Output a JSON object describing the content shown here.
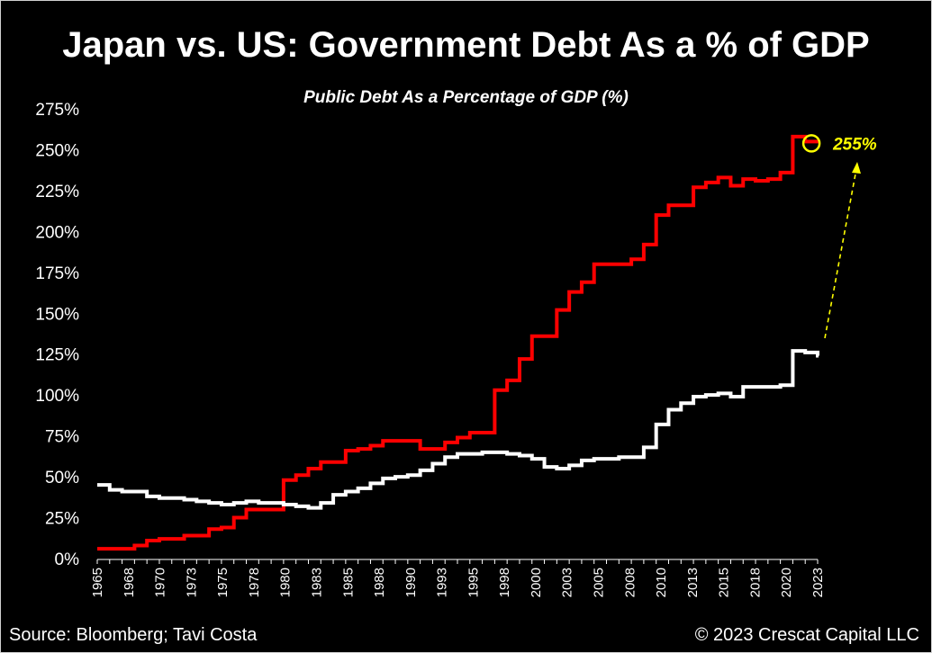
{
  "header": {
    "title": "Japan vs. US: Government Debt As a % of GDP"
  },
  "footer": {
    "source": "Source: Bloomberg; Tavi Costa",
    "copyright": "© 2023 Crescat Capital LLC"
  },
  "chart_data": {
    "type": "line",
    "title": "Public Debt As a Percentage of GDP (%)",
    "xlabel": "",
    "ylabel": "",
    "ylim": [
      0,
      275
    ],
    "yticks": [
      "0%",
      "25%",
      "50%",
      "75%",
      "100%",
      "125%",
      "150%",
      "175%",
      "200%",
      "225%",
      "250%",
      "275%"
    ],
    "xticks": [
      "1965",
      "1968",
      "1970",
      "1973",
      "1975",
      "1978",
      "1980",
      "1983",
      "1985",
      "1988",
      "1990",
      "1993",
      "1995",
      "1998",
      "2000",
      "2003",
      "2005",
      "2008",
      "2010",
      "2013",
      "2015",
      "2018",
      "2020",
      "2023"
    ],
    "grid": false,
    "legend": "none",
    "x": [
      1965,
      1966,
      1967,
      1968,
      1969,
      1970,
      1971,
      1972,
      1973,
      1974,
      1975,
      1976,
      1977,
      1978,
      1979,
      1980,
      1981,
      1982,
      1983,
      1984,
      1985,
      1986,
      1987,
      1988,
      1989,
      1990,
      1991,
      1992,
      1993,
      1994,
      1995,
      1996,
      1997,
      1998,
      1999,
      2000,
      2001,
      2002,
      2003,
      2004,
      2005,
      2006,
      2007,
      2008,
      2009,
      2010,
      2011,
      2012,
      2013,
      2014,
      2015,
      2016,
      2017,
      2018,
      2019,
      2020,
      2021,
      2022,
      2023
    ],
    "series": [
      {
        "color": "#ff0000",
        "values": [
          6,
          6,
          6,
          8,
          11,
          12,
          12,
          14,
          14,
          18,
          19,
          25,
          30,
          30,
          30,
          48,
          51,
          55,
          59,
          59,
          66,
          67,
          69,
          72,
          72,
          72,
          67,
          67,
          71,
          74,
          77,
          77,
          103,
          109,
          122,
          136,
          136,
          152,
          163,
          169,
          180,
          180,
          180,
          183,
          192,
          210,
          216,
          216,
          227,
          230,
          233,
          228,
          232,
          231,
          232,
          236,
          258,
          255,
          255
        ]
      },
      {
        "color": "#ffffff",
        "values": [
          45,
          42,
          41,
          41,
          38,
          37,
          37,
          36,
          35,
          34,
          33,
          34,
          35,
          34,
          34,
          33,
          32,
          31,
          34,
          39,
          41,
          43,
          46,
          49,
          50,
          51,
          54,
          58,
          62,
          64,
          64,
          65,
          65,
          64,
          63,
          61,
          56,
          55,
          57,
          60,
          61,
          61,
          62,
          62,
          68,
          82,
          91,
          95,
          99,
          100,
          101,
          99,
          105,
          105,
          105,
          106,
          127,
          126,
          124
        ]
      }
    ],
    "annotations": [
      {
        "label": "255%",
        "x": 2022.5,
        "y": 255,
        "color": "#ffff00"
      }
    ]
  }
}
